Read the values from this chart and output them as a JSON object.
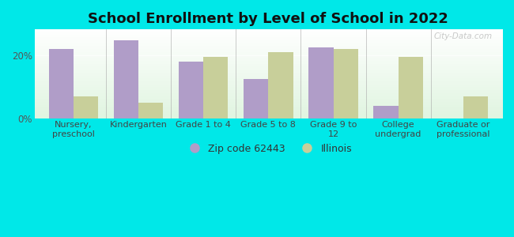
{
  "title": "School Enrollment by Level of School in 2022",
  "categories": [
    "Nursery,\npreschool",
    "Kindergarten",
    "Grade 1 to 4",
    "Grade 5 to 8",
    "Grade 9 to\n12",
    "College\nundergrad",
    "Graduate or\nprofessional"
  ],
  "zip_values": [
    22.0,
    24.5,
    18.0,
    12.5,
    22.5,
    4.0,
    0.0
  ],
  "il_values": [
    7.0,
    5.0,
    19.5,
    21.0,
    22.0,
    19.5,
    7.0
  ],
  "zip_color": "#b09dc8",
  "il_color": "#c8cf9a",
  "background_color": "#00e8e8",
  "zip_label": "Zip code 62443",
  "il_label": "Illinois",
  "ylim": [
    0,
    28
  ],
  "yticks": [
    0,
    20
  ],
  "ytick_labels": [
    "0%",
    "20%"
  ],
  "bar_width": 0.38,
  "title_fontsize": 13,
  "tick_fontsize": 8,
  "legend_fontsize": 9,
  "watermark": "City-Data.com"
}
